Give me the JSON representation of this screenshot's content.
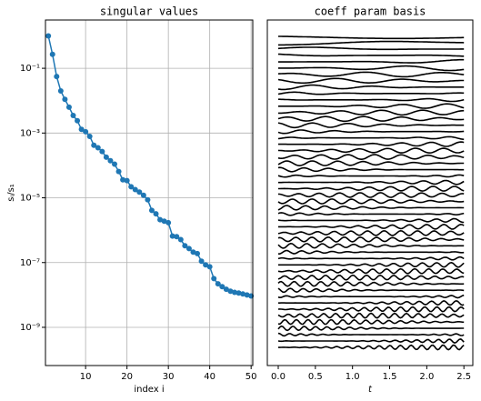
{
  "chart_data": [
    {
      "type": "line",
      "title": "singular values",
      "xlabel": "index i",
      "ylabel": "sᵢ/s₁",
      "x": [
        1,
        2,
        3,
        4,
        5,
        6,
        7,
        8,
        9,
        10,
        11,
        12,
        13,
        14,
        15,
        16,
        17,
        18,
        19,
        20,
        21,
        22,
        23,
        24,
        25,
        26,
        27,
        28,
        29,
        30,
        31,
        32,
        33,
        34,
        35,
        36,
        37,
        38,
        39,
        40,
        41,
        42,
        43,
        44,
        45,
        46,
        47,
        48,
        49,
        50
      ],
      "series": [
        {
          "color": "#1f77b4",
          "values": [
            1,
            0.27,
            0.056,
            0.02,
            0.011,
            0.0063,
            0.0035,
            0.0024,
            0.0013,
            0.0011,
            0.00079,
            0.00042,
            0.00035,
            0.00027,
            0.00018,
            0.00014,
            0.00011,
            6.5e-05,
            3.6e-05,
            3.4e-05,
            2.2e-05,
            1.8e-05,
            1.5e-05,
            1.2e-05,
            8.7e-06,
            4.1e-06,
            3.2e-06,
            2.1e-06,
            1.9e-06,
            1.7e-06,
            6.6e-07,
            6.3e-07,
            5.1e-07,
            3.3e-07,
            2.7e-07,
            2.1e-07,
            1.9e-07,
            1.1e-07,
            8.5e-08,
            7.4e-08,
            3.2e-08,
            2.2e-08,
            1.8e-08,
            1.5e-08,
            1.3e-08,
            1.2e-08,
            1.15e-08,
            1.07e-08,
            1e-08,
            9.3e-09
          ]
        }
      ],
      "xlim": [
        0.3,
        50.4
      ],
      "xticks": [
        10,
        20,
        30,
        40,
        50
      ],
      "ylim": [
        3.1,
        6.6e-11
      ],
      "log_y": true,
      "yticks": [
        {
          "value": 0.1,
          "label": "10⁻¹"
        },
        {
          "value": 0.001,
          "label": "10⁻³"
        },
        {
          "value": 1e-05,
          "label": "10⁻⁵"
        },
        {
          "value": 1e-07,
          "label": "10⁻⁷"
        },
        {
          "value": 1e-09,
          "label": "10⁻⁹"
        }
      ],
      "grid": true
    },
    {
      "type": "basis",
      "title": "coeff param basis",
      "xlabel": "t",
      "xlim": [
        -0.147,
        2.62
      ],
      "xticks": [
        {
          "value": 0,
          "label": "0.0"
        },
        {
          "value": 0.5,
          "label": "0.5"
        },
        {
          "value": 1,
          "label": "1.0"
        },
        {
          "value": 1.5,
          "label": "1.5"
        },
        {
          "value": 2,
          "label": "2.0"
        },
        {
          "value": 2.5,
          "label": "2.5"
        }
      ],
      "color": "#000000",
      "grid": false
    }
  ]
}
